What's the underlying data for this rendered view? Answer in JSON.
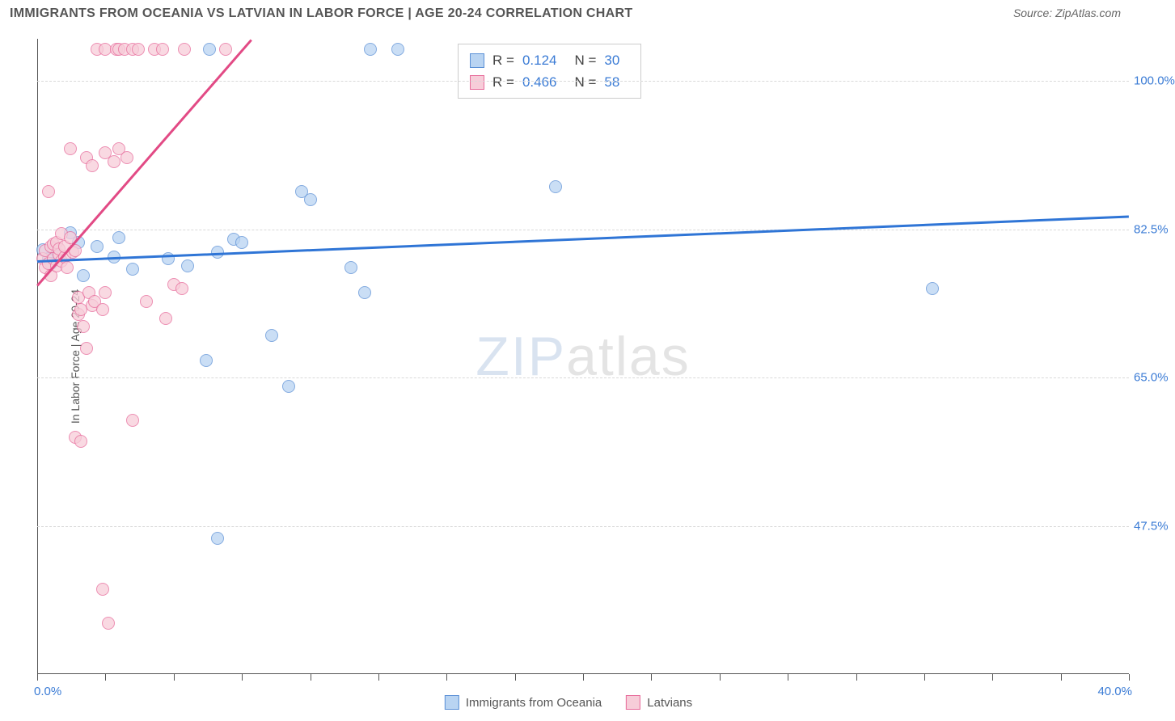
{
  "title": "IMMIGRANTS FROM OCEANIA VS LATVIAN IN LABOR FORCE | AGE 20-24 CORRELATION CHART",
  "source": "Source: ZipAtlas.com",
  "watermark": {
    "part1": "ZIP",
    "part2": "atlas"
  },
  "y_axis": {
    "label": "In Labor Force | Age 20-24",
    "min": 30.0,
    "max": 105.0,
    "ticks": [
      {
        "value": 100.0,
        "label": "100.0%"
      },
      {
        "value": 82.5,
        "label": "82.5%"
      },
      {
        "value": 65.0,
        "label": "65.0%"
      },
      {
        "value": 47.5,
        "label": "47.5%"
      }
    ]
  },
  "x_axis": {
    "min": 0.0,
    "max": 40.0,
    "ticks": [
      0,
      2.5,
      5,
      7.5,
      10,
      12.5,
      15,
      17.5,
      20,
      22.5,
      25,
      27.5,
      30,
      32.5,
      35,
      37.5,
      40
    ],
    "min_label": "0.0%",
    "max_label": "40.0%"
  },
  "series": [
    {
      "id": "oceania",
      "label": "Immigrants from Oceania",
      "marker_fill": "#b9d4f2",
      "marker_stroke": "#5b90d6",
      "marker_opacity": 0.75,
      "line_color": "#2f75d6",
      "r_value": "0.124",
      "n_value": "30",
      "trend": {
        "x1": 0.0,
        "y1": 78.9,
        "x2": 40.0,
        "y2": 84.2
      },
      "points": [
        {
          "x": 0.2,
          "y": 80.1
        },
        {
          "x": 0.4,
          "y": 79.0
        },
        {
          "x": 0.5,
          "y": 78.5
        },
        {
          "x": 0.6,
          "y": 80.2
        },
        {
          "x": 0.8,
          "y": 79.3
        },
        {
          "x": 1.2,
          "y": 82.1
        },
        {
          "x": 1.5,
          "y": 81.0
        },
        {
          "x": 1.7,
          "y": 77.0
        },
        {
          "x": 2.2,
          "y": 80.5
        },
        {
          "x": 2.8,
          "y": 79.2
        },
        {
          "x": 3.0,
          "y": 81.5
        },
        {
          "x": 3.5,
          "y": 77.8
        },
        {
          "x": 4.8,
          "y": 79.0
        },
        {
          "x": 5.5,
          "y": 78.2
        },
        {
          "x": 6.2,
          "y": 67.0
        },
        {
          "x": 6.3,
          "y": 103.8
        },
        {
          "x": 6.6,
          "y": 79.8
        },
        {
          "x": 6.6,
          "y": 46.0
        },
        {
          "x": 7.2,
          "y": 81.3
        },
        {
          "x": 7.5,
          "y": 81.0
        },
        {
          "x": 8.6,
          "y": 70.0
        },
        {
          "x": 9.2,
          "y": 64.0
        },
        {
          "x": 9.7,
          "y": 87.0
        },
        {
          "x": 10.0,
          "y": 86.0
        },
        {
          "x": 11.5,
          "y": 78.0
        },
        {
          "x": 12.0,
          "y": 75.0
        },
        {
          "x": 12.2,
          "y": 103.8
        },
        {
          "x": 13.2,
          "y": 103.8
        },
        {
          "x": 19.0,
          "y": 87.5
        },
        {
          "x": 32.8,
          "y": 75.5
        }
      ]
    },
    {
      "id": "latvians",
      "label": "Latvians",
      "marker_fill": "#f7cdd9",
      "marker_stroke": "#e76a9a",
      "marker_opacity": 0.75,
      "line_color": "#e24a85",
      "r_value": "0.466",
      "n_value": "58",
      "trend": {
        "x1": 0.0,
        "y1": 76.0,
        "x2": 10.0,
        "y2": 113.0
      },
      "points": [
        {
          "x": 0.2,
          "y": 79.0
        },
        {
          "x": 0.3,
          "y": 78.0
        },
        {
          "x": 0.3,
          "y": 80.0
        },
        {
          "x": 0.4,
          "y": 87.0
        },
        {
          "x": 0.4,
          "y": 78.5
        },
        {
          "x": 0.5,
          "y": 80.5
        },
        {
          "x": 0.5,
          "y": 77.0
        },
        {
          "x": 0.6,
          "y": 79.0
        },
        {
          "x": 0.6,
          "y": 80.8
        },
        {
          "x": 0.7,
          "y": 78.2
        },
        {
          "x": 0.7,
          "y": 81.0
        },
        {
          "x": 0.8,
          "y": 79.5
        },
        {
          "x": 0.8,
          "y": 80.2
        },
        {
          "x": 0.9,
          "y": 78.8
        },
        {
          "x": 0.9,
          "y": 82.0
        },
        {
          "x": 1.0,
          "y": 79.2
        },
        {
          "x": 1.0,
          "y": 80.5
        },
        {
          "x": 1.1,
          "y": 78.0
        },
        {
          "x": 1.2,
          "y": 81.5
        },
        {
          "x": 1.3,
          "y": 79.8
        },
        {
          "x": 1.4,
          "y": 80.0
        },
        {
          "x": 1.5,
          "y": 74.5
        },
        {
          "x": 1.5,
          "y": 72.5
        },
        {
          "x": 1.6,
          "y": 73.0
        },
        {
          "x": 1.7,
          "y": 71.0
        },
        {
          "x": 1.8,
          "y": 68.5
        },
        {
          "x": 1.9,
          "y": 75.0
        },
        {
          "x": 2.0,
          "y": 73.5
        },
        {
          "x": 2.1,
          "y": 74.0
        },
        {
          "x": 2.4,
          "y": 73.0
        },
        {
          "x": 2.5,
          "y": 75.0
        },
        {
          "x": 1.2,
          "y": 92.0
        },
        {
          "x": 1.8,
          "y": 91.0
        },
        {
          "x": 2.0,
          "y": 90.0
        },
        {
          "x": 2.5,
          "y": 91.5
        },
        {
          "x": 2.8,
          "y": 90.5
        },
        {
          "x": 3.0,
          "y": 92.0
        },
        {
          "x": 3.3,
          "y": 91.0
        },
        {
          "x": 1.4,
          "y": 58.0
        },
        {
          "x": 1.6,
          "y": 57.5
        },
        {
          "x": 2.4,
          "y": 40.0
        },
        {
          "x": 2.6,
          "y": 36.0
        },
        {
          "x": 3.5,
          "y": 60.0
        },
        {
          "x": 4.0,
          "y": 74.0
        },
        {
          "x": 4.7,
          "y": 72.0
        },
        {
          "x": 5.0,
          "y": 76.0
        },
        {
          "x": 5.3,
          "y": 75.5
        },
        {
          "x": 2.2,
          "y": 103.8
        },
        {
          "x": 2.5,
          "y": 103.8
        },
        {
          "x": 2.9,
          "y": 103.8
        },
        {
          "x": 3.0,
          "y": 103.8
        },
        {
          "x": 3.2,
          "y": 103.8
        },
        {
          "x": 3.5,
          "y": 103.8
        },
        {
          "x": 3.7,
          "y": 103.8
        },
        {
          "x": 4.3,
          "y": 103.8
        },
        {
          "x": 4.6,
          "y": 103.8
        },
        {
          "x": 5.4,
          "y": 103.8
        },
        {
          "x": 6.9,
          "y": 103.8
        }
      ]
    }
  ],
  "stat_legend": {
    "r_label": "R  =",
    "n_label": "N  ="
  },
  "colors": {
    "grid": "#d9d9d9",
    "axis": "#555555",
    "tick_text": "#3a7bd5",
    "title_text": "#555555"
  }
}
